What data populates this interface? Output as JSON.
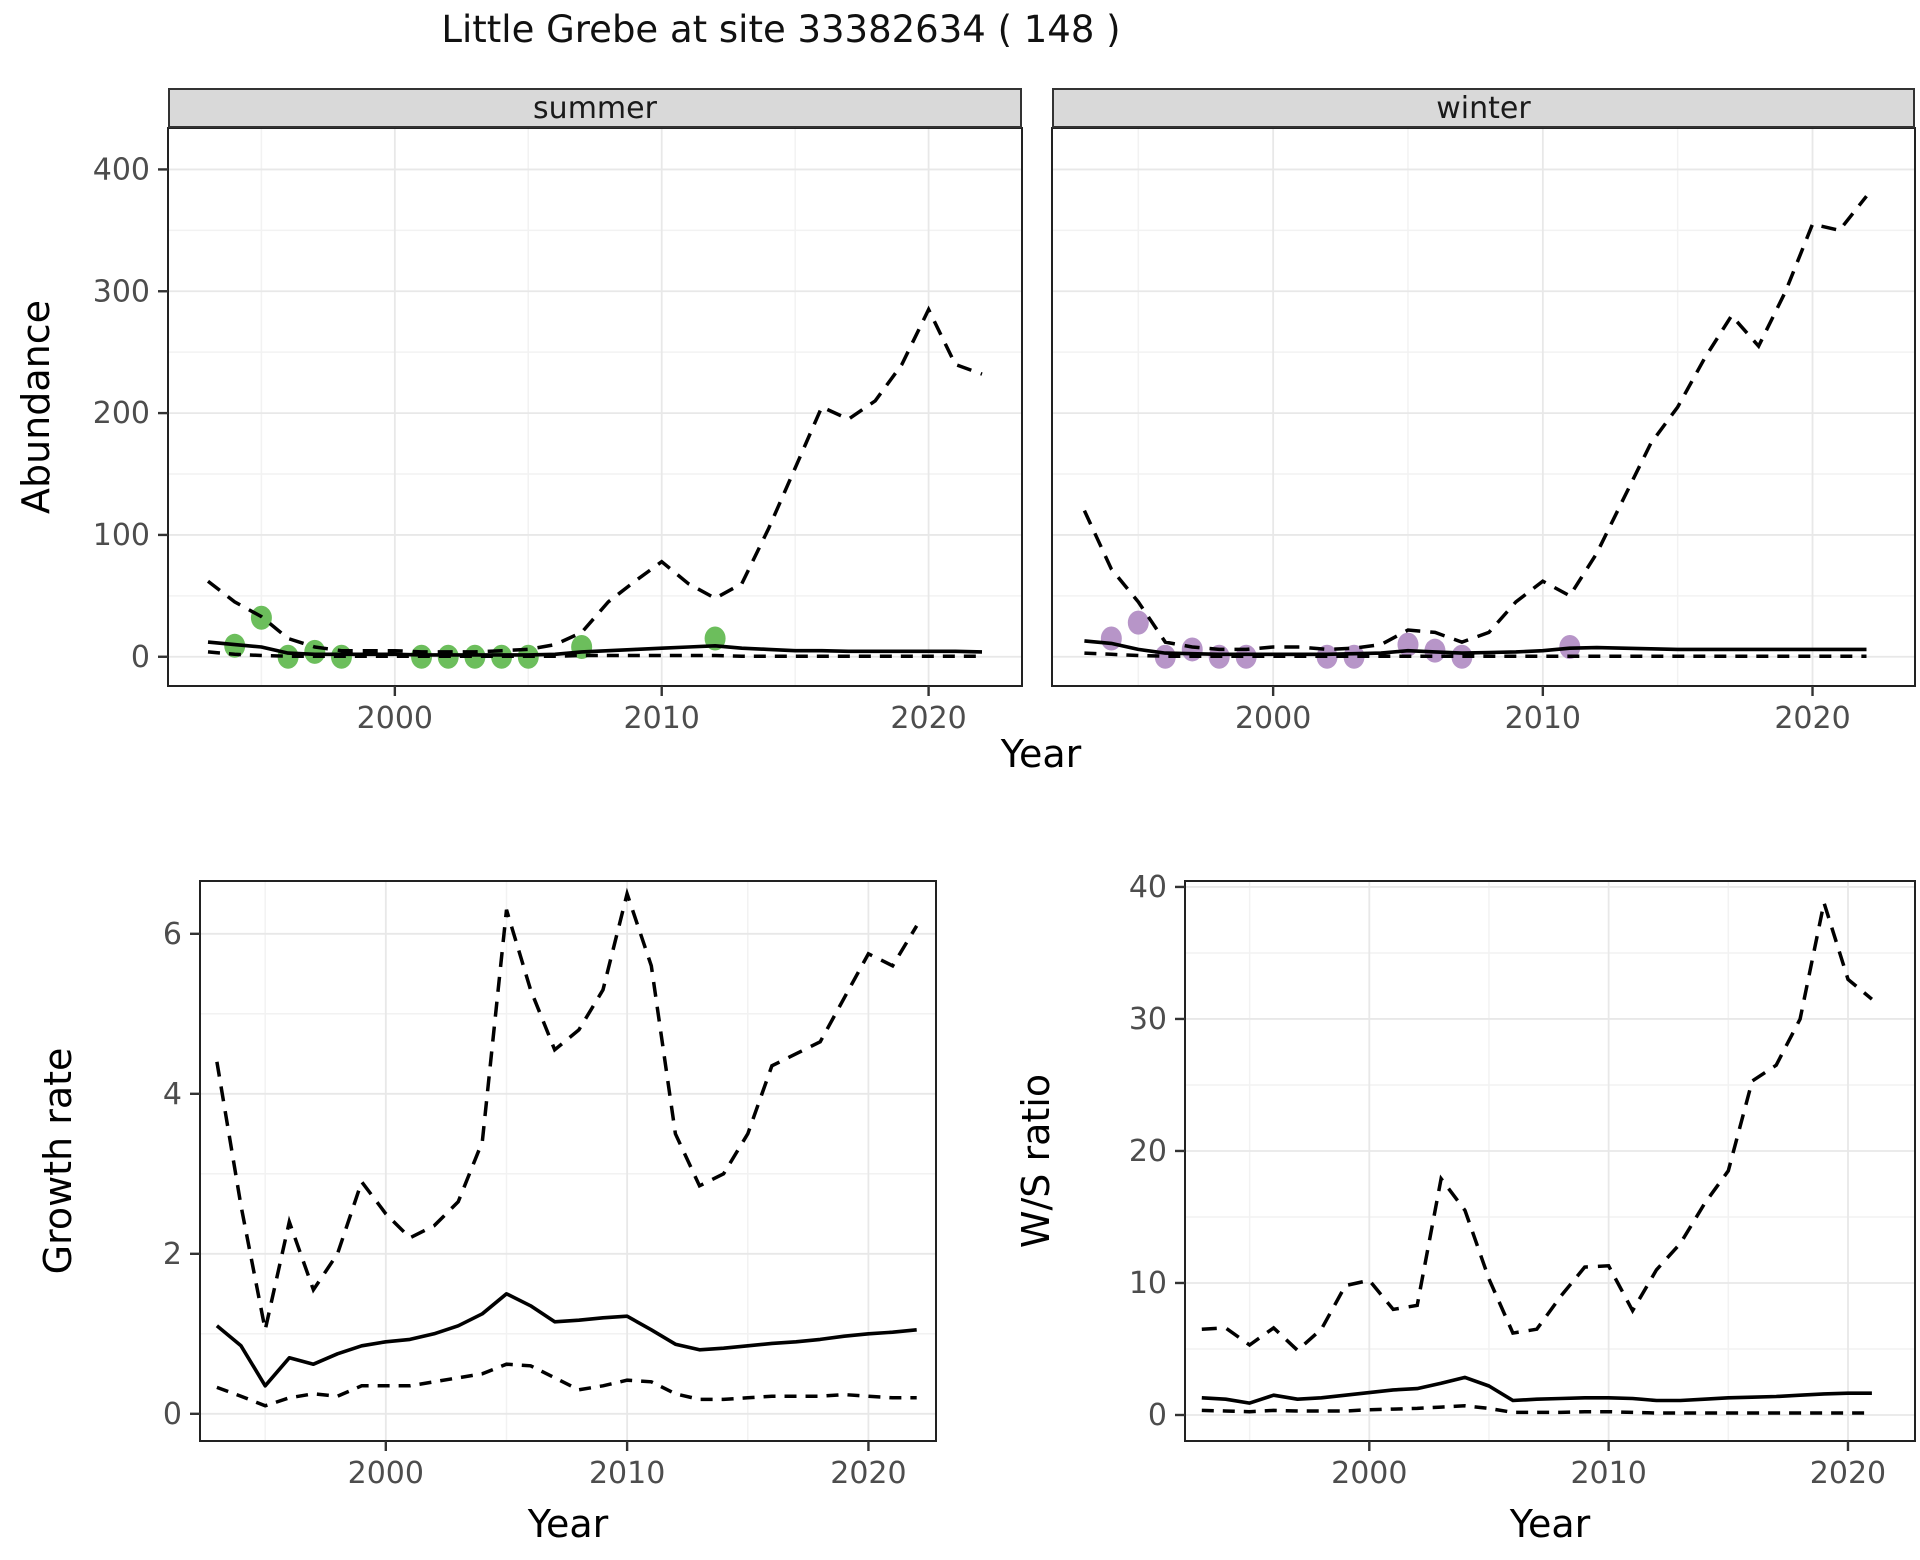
{
  "title": "Little Grebe at site 33382634 ( 148 )",
  "colors": {
    "summer_point": "#6cbe5c",
    "winter_point": "#b795c8",
    "line": "#000000",
    "strip_bg": "#d9d9d9",
    "panel_border": "#222222",
    "grid_major": "#e8e8e8",
    "grid_minor": "#f2f2f2",
    "tick_text": "#4d4d4d"
  },
  "chart_data": [
    {
      "type": "line",
      "name": "abundance-by-season",
      "title": "Little Grebe at site 33382634 ( 148 )",
      "xlabel": "Year",
      "ylabel": "Abundance",
      "x_ticks": [
        2000,
        2010,
        2020
      ],
      "y_ticks": [
        0,
        100,
        200,
        300,
        400
      ],
      "xlim": [
        1991.5,
        2023.5
      ],
      "ylim": [
        -24,
        434
      ],
      "grid": true,
      "legend": "none",
      "years": [
        1993,
        1994,
        1995,
        1996,
        1997,
        1998,
        1999,
        2000,
        2001,
        2002,
        2003,
        2004,
        2005,
        2006,
        2007,
        2008,
        2009,
        2010,
        2011,
        2012,
        2013,
        2014,
        2015,
        2016,
        2017,
        2018,
        2019,
        2020,
        2021,
        2022
      ],
      "facets": [
        {
          "label": "summer",
          "point_color": "#6cbe5c",
          "series": {
            "upper_ci": [
              62,
              45,
              33,
              15,
              8,
              5,
              5,
              5,
              4,
              4,
              4,
              5,
              6,
              10,
              20,
              45,
              62,
              78,
              60,
              48,
              60,
              105,
              155,
              205,
              195,
              210,
              240,
              285,
              240,
              232
            ],
            "median": [
              12,
              10,
              8,
              3,
              2,
              2,
              2,
              2,
              1.5,
              1.5,
              1.5,
              1.5,
              1.5,
              2,
              4,
              5,
              6,
              7,
              8,
              9,
              7,
              6,
              5,
              5,
              4.5,
              4.5,
              4.5,
              4.5,
              4.5,
              4
            ],
            "lower_ci": [
              4,
              2,
              1,
              0.5,
              0.5,
              0.5,
              0.5,
              0.5,
              0.5,
              0.5,
              0.5,
              0.5,
              0.5,
              0.5,
              1,
              1,
              1,
              1,
              1,
              1,
              0.5,
              0.5,
              0.5,
              0.5,
              0.5,
              0.5,
              0.5,
              0.5,
              0.5,
              0.5
            ]
          },
          "observed_points": [
            [
              1994,
              9
            ],
            [
              1995,
              32
            ],
            [
              1996,
              0
            ],
            [
              1997,
              4
            ],
            [
              1998,
              0
            ],
            [
              2001,
              0
            ],
            [
              2002,
              0
            ],
            [
              2003,
              0
            ],
            [
              2004,
              0
            ],
            [
              2005,
              0
            ],
            [
              2007,
              8
            ],
            [
              2012,
              15
            ]
          ]
        },
        {
          "label": "winter",
          "point_color": "#b795c8",
          "series": {
            "upper_ci": [
              120,
              72,
              45,
              12,
              8,
              6,
              6,
              8,
              8,
              6,
              7,
              10,
              22,
              20,
              12,
              20,
              45,
              62,
              50,
              85,
              130,
              175,
              205,
              245,
              280,
              255,
              300,
              355,
              350,
              378
            ],
            "median": [
              13,
              11,
              6,
              3,
              2.5,
              2,
              2,
              2,
              2,
              2,
              2.5,
              3,
              5,
              4,
              3,
              3.5,
              4,
              5,
              7,
              7.5,
              7,
              6.5,
              6,
              6,
              6,
              6,
              6,
              6,
              6,
              6
            ],
            "lower_ci": [
              3,
              2,
              1,
              0.5,
              0.5,
              0.5,
              0.5,
              0.5,
              0.5,
              0.5,
              0.5,
              0.5,
              0.5,
              0.5,
              0.5,
              0.5,
              0.5,
              0.5,
              0.5,
              0.5,
              0.5,
              0.5,
              0.5,
              0.5,
              0.5,
              0.5,
              0.5,
              0.5,
              0.5,
              0.5
            ]
          },
          "observed_points": [
            [
              1994,
              15
            ],
            [
              1995,
              28
            ],
            [
              1996,
              0
            ],
            [
              1997,
              6
            ],
            [
              1998,
              0
            ],
            [
              1999,
              0
            ],
            [
              2002,
              0
            ],
            [
              2003,
              0
            ],
            [
              2005,
              10
            ],
            [
              2006,
              5
            ],
            [
              2007,
              0
            ],
            [
              2011,
              8
            ]
          ]
        }
      ]
    },
    {
      "type": "line",
      "name": "growth-rate",
      "xlabel": "Year",
      "ylabel": "Growth rate",
      "x_ticks": [
        2000,
        2010,
        2020
      ],
      "y_ticks": [
        0,
        2,
        4,
        6
      ],
      "xlim": [
        1992.3,
        2022.8
      ],
      "ylim": [
        -0.34,
        6.66
      ],
      "grid": true,
      "legend": "none",
      "years": [
        1993,
        1994,
        1995,
        1996,
        1997,
        1998,
        1999,
        2000,
        2001,
        2002,
        2003,
        2004,
        2005,
        2006,
        2007,
        2008,
        2009,
        2010,
        2011,
        2012,
        2013,
        2014,
        2015,
        2016,
        2017,
        2018,
        2019,
        2020,
        2021,
        2022
      ],
      "series": {
        "upper_ci": [
          4.4,
          2.6,
          1.05,
          2.4,
          1.55,
          2.0,
          2.9,
          2.5,
          2.2,
          2.35,
          2.65,
          3.4,
          6.3,
          5.3,
          4.55,
          4.8,
          5.3,
          6.5,
          5.6,
          3.5,
          2.85,
          3.0,
          3.5,
          4.35,
          4.5,
          4.65,
          5.2,
          5.75,
          5.6,
          6.1
        ],
        "median": [
          1.1,
          0.85,
          0.35,
          0.7,
          0.62,
          0.75,
          0.85,
          0.9,
          0.93,
          1.0,
          1.1,
          1.25,
          1.5,
          1.35,
          1.15,
          1.17,
          1.2,
          1.22,
          1.05,
          0.87,
          0.8,
          0.82,
          0.85,
          0.88,
          0.9,
          0.93,
          0.97,
          1.0,
          1.02,
          1.05
        ],
        "lower_ci": [
          0.33,
          0.22,
          0.1,
          0.2,
          0.25,
          0.22,
          0.35,
          0.35,
          0.35,
          0.4,
          0.45,
          0.5,
          0.62,
          0.6,
          0.45,
          0.3,
          0.35,
          0.42,
          0.4,
          0.25,
          0.18,
          0.18,
          0.2,
          0.22,
          0.22,
          0.22,
          0.24,
          0.22,
          0.2,
          0.2
        ]
      }
    },
    {
      "type": "line",
      "name": "winter-summer-ratio",
      "xlabel": "Year",
      "ylabel": "W/S ratio",
      "x_ticks": [
        2000,
        2010,
        2020
      ],
      "y_ticks": [
        0,
        10,
        20,
        30,
        40
      ],
      "xlim": [
        1992.3,
        2022.8
      ],
      "ylim": [
        -1.97,
        40.45
      ],
      "grid": true,
      "legend": "none",
      "years": [
        1993,
        1994,
        1995,
        1996,
        1997,
        1998,
        1999,
        2000,
        2001,
        2002,
        2003,
        2004,
        2005,
        2006,
        2007,
        2008,
        2009,
        2010,
        2011,
        2012,
        2013,
        2014,
        2015,
        2016,
        2017,
        2018,
        2019,
        2020,
        2021
      ],
      "series": {
        "upper_ci": [
          6.5,
          6.6,
          5.3,
          6.6,
          4.9,
          6.5,
          9.8,
          10.2,
          8.0,
          8.3,
          17.9,
          15.5,
          10.3,
          6.2,
          6.5,
          9.0,
          11.2,
          11.3,
          7.9,
          11,
          13,
          16,
          18.5,
          25.3,
          26.5,
          30,
          38.8,
          33,
          31.5
        ],
        "median": [
          1.3,
          1.2,
          0.9,
          1.5,
          1.2,
          1.3,
          1.5,
          1.7,
          1.9,
          2.0,
          2.4,
          2.85,
          2.2,
          1.1,
          1.2,
          1.25,
          1.3,
          1.3,
          1.25,
          1.1,
          1.1,
          1.2,
          1.3,
          1.35,
          1.4,
          1.5,
          1.6,
          1.65,
          1.65
        ],
        "lower_ci": [
          0.35,
          0.3,
          0.25,
          0.35,
          0.3,
          0.3,
          0.3,
          0.4,
          0.45,
          0.5,
          0.6,
          0.7,
          0.5,
          0.2,
          0.2,
          0.2,
          0.25,
          0.25,
          0.2,
          0.15,
          0.15,
          0.15,
          0.15,
          0.15,
          0.15,
          0.15,
          0.15,
          0.15,
          0.15
        ]
      }
    }
  ]
}
